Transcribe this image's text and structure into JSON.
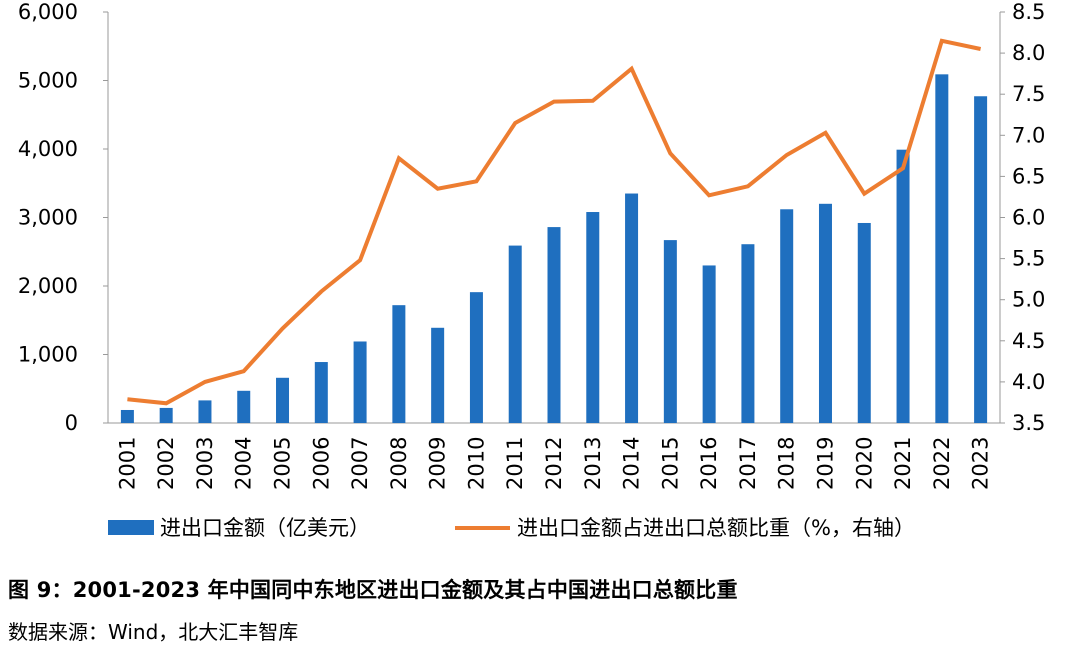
{
  "chart_data": {
    "type": "bar",
    "categories": [
      "2001",
      "2002",
      "2003",
      "2004",
      "2005",
      "2006",
      "2007",
      "2008",
      "2009",
      "2010",
      "2011",
      "2012",
      "2013",
      "2014",
      "2015",
      "2016",
      "2017",
      "2018",
      "2019",
      "2020",
      "2021",
      "2022",
      "2023"
    ],
    "series": [
      {
        "name": "进出口金额（亿美元）",
        "type": "bar",
        "axis": "left",
        "color": "#1F6FBF",
        "values": [
          190,
          220,
          330,
          470,
          660,
          890,
          1190,
          1720,
          1390,
          1910,
          2590,
          2860,
          3080,
          3350,
          2670,
          2300,
          2610,
          3120,
          3200,
          2920,
          3990,
          5090,
          4770
        ]
      },
      {
        "name": "进出口金额占进出口总额比重（%，右轴）",
        "type": "line",
        "axis": "right",
        "color": "#ED7D31",
        "values": [
          3.79,
          3.74,
          4.0,
          4.13,
          4.65,
          5.1,
          5.48,
          6.72,
          6.35,
          6.44,
          7.15,
          7.41,
          7.42,
          7.81,
          6.78,
          6.27,
          6.38,
          6.76,
          7.03,
          6.29,
          6.6,
          8.15,
          8.05
        ]
      }
    ],
    "y_left": {
      "range": [
        0,
        6000
      ],
      "ticks": [
        0,
        1000,
        2000,
        3000,
        4000,
        5000,
        6000
      ],
      "tick_labels": [
        "0",
        "1,000",
        "2,000",
        "3,000",
        "4,000",
        "5,000",
        "6,000"
      ]
    },
    "y_right": {
      "range": [
        3.5,
        8.5
      ],
      "ticks": [
        3.5,
        4.0,
        4.5,
        5.0,
        5.5,
        6.0,
        6.5,
        7.0,
        7.5,
        8.0,
        8.5
      ],
      "tick_labels": [
        "3.5",
        "4.0",
        "4.5",
        "5.0",
        "5.5",
        "6.0",
        "6.5",
        "7.0",
        "7.5",
        "8.0",
        "8.5"
      ]
    },
    "grid": false,
    "legend_position": "bottom",
    "title": "图 9：2001-2023 年中国同中东地区进出口金额及其占中国进出口总额比重",
    "source": "数据来源：Wind，北大汇丰智库"
  }
}
